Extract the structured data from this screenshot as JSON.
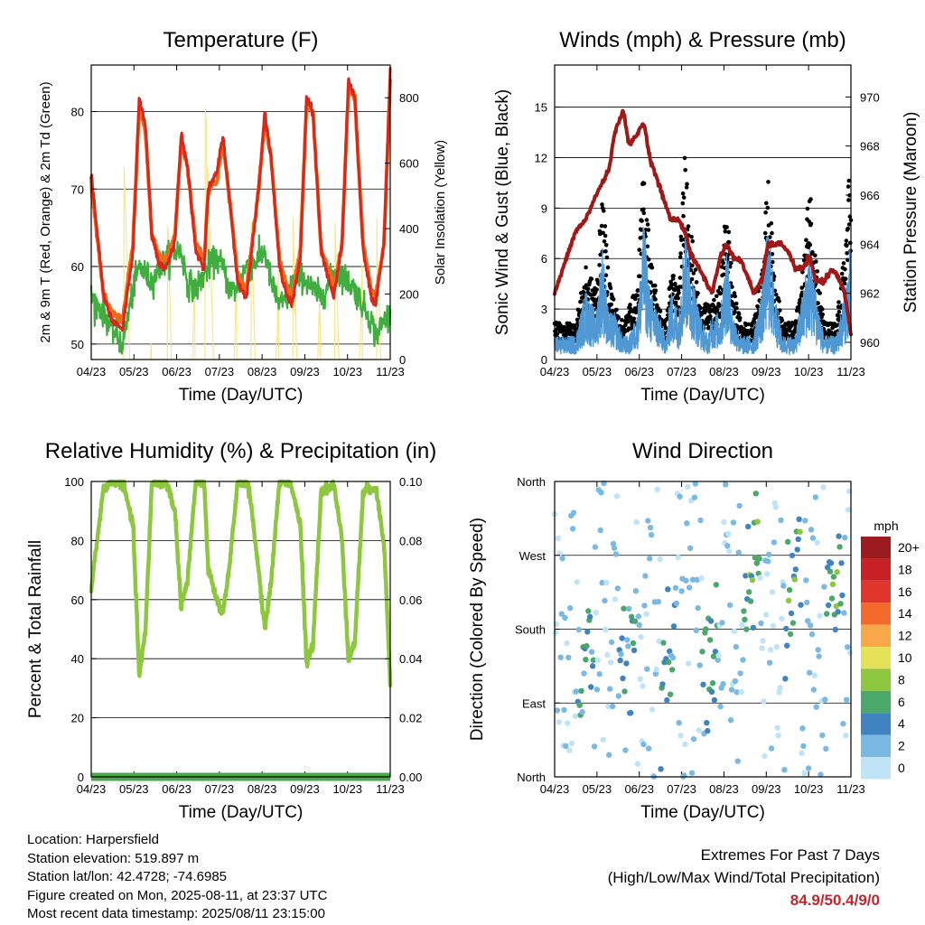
{
  "colors": {
    "temp2m": "#d7281c",
    "temp9m": "#f06a1c",
    "dewpoint": "#3fae3f",
    "solar": "#f7e58a",
    "gust": "#000000",
    "wind": "#4f98d3",
    "pressure": "#a11818",
    "rh": "#8dc63f",
    "precip": "#4aa84a"
  },
  "chart_data": [
    {
      "type": "line",
      "title": "Temperature (F)",
      "xlabel": "Time (Day/UTC)",
      "ylabel": "2m & 9m T (Red, Orange) & 2m Td (Green)",
      "y2label": "Solar Insolation (Yellow)",
      "x_ticks": [
        "04/23",
        "05/23",
        "06/23",
        "07/23",
        "08/23",
        "09/23",
        "10/23",
        "11/23"
      ],
      "ylim": [
        48,
        86
      ],
      "y_ticks": [
        50,
        60,
        70,
        80
      ],
      "y2lim": [
        0,
        900
      ],
      "y2_ticks": [
        0,
        200,
        400,
        600,
        800
      ],
      "grid": true,
      "x_days": [
        0,
        0.3,
        0.5,
        0.75,
        1.0,
        1.15,
        1.3,
        1.45,
        1.65,
        1.8,
        2.0,
        2.15,
        2.3,
        2.5,
        2.7,
        2.8,
        3.0,
        3.15,
        3.3,
        3.5,
        3.7,
        3.8,
        4.0,
        4.15,
        4.3,
        4.5,
        4.7,
        4.8,
        5.0,
        5.15,
        5.3,
        5.5,
        5.7,
        5.8,
        6.0,
        6.15,
        6.3,
        6.5,
        6.7,
        6.8,
        7.0,
        7.15
      ],
      "series": [
        {
          "name": "2m T",
          "values": [
            72,
            56,
            53,
            52,
            62,
            82,
            78,
            64,
            60,
            60,
            63,
            77,
            73,
            62,
            60,
            70,
            72,
            77,
            69,
            58,
            56,
            60,
            70,
            80,
            74,
            60,
            56,
            55,
            61,
            82,
            80,
            62,
            58,
            56,
            63,
            84,
            82,
            62,
            56,
            55,
            63,
            85
          ]
        },
        {
          "name": "9m T",
          "values": [
            71,
            56,
            54,
            53,
            63,
            81,
            77,
            64,
            61,
            61,
            64,
            76,
            73,
            63,
            61,
            70,
            71,
            76,
            69,
            59,
            57,
            61,
            70,
            79,
            74,
            61,
            57,
            56,
            62,
            81,
            80,
            62,
            59,
            57,
            63,
            83,
            82,
            63,
            57,
            56,
            63,
            84
          ]
        },
        {
          "name": "2m Td",
          "values": [
            56,
            54,
            52,
            50,
            57,
            60,
            59,
            58,
            60,
            61,
            62,
            62,
            58,
            57,
            59,
            60,
            61,
            60,
            57,
            57,
            60,
            60,
            61,
            62,
            58,
            55,
            56,
            58,
            59,
            58,
            57,
            56,
            58,
            59,
            59,
            58,
            57,
            55,
            53,
            51,
            53,
            54
          ]
        },
        {
          "name": "Solar Insolation",
          "values": [
            0,
            0,
            0,
            0,
            420,
            850,
            520,
            0,
            0,
            0,
            420,
            800,
            400,
            0,
            0,
            200,
            420,
            800,
            400,
            0,
            0,
            0,
            420,
            840,
            420,
            0,
            0,
            0,
            420,
            850,
            420,
            0,
            0,
            0,
            420,
            850,
            420,
            0,
            0,
            0,
            420,
            850
          ]
        }
      ]
    },
    {
      "type": "line",
      "title": "Winds (mph) & Pressure (mb)",
      "xlabel": "Time (Day/UTC)",
      "ylabel": "Sonic Wind & Gust (Blue, Black)",
      "y2label": "Station Pressure (Maroon)",
      "x_ticks": [
        "04/23",
        "05/23",
        "06/23",
        "07/23",
        "08/23",
        "09/23",
        "10/23",
        "11/23"
      ],
      "ylim": [
        0,
        17.5
      ],
      "y_ticks": [
        0,
        3,
        6,
        9,
        12,
        15
      ],
      "y2lim": [
        959.3,
        971.3
      ],
      "y2_ticks": [
        960,
        962,
        964,
        966,
        968,
        970
      ],
      "grid": true,
      "x_days": [
        0,
        0.3,
        0.5,
        0.75,
        1.0,
        1.15,
        1.3,
        1.45,
        1.65,
        1.8,
        2.0,
        2.15,
        2.3,
        2.5,
        2.7,
        2.8,
        3.0,
        3.15,
        3.3,
        3.5,
        3.7,
        3.8,
        4.0,
        4.15,
        4.3,
        4.5,
        4.7,
        4.8,
        5.0,
        5.15,
        5.3,
        5.5,
        5.7,
        5.8,
        6.0,
        6.15,
        6.3,
        6.5,
        6.7,
        6.8,
        7.0,
        7.15
      ],
      "series": [
        {
          "name": "Sonic Wind",
          "values": [
            1,
            1,
            1,
            3,
            2,
            5,
            2,
            2,
            1,
            1,
            2,
            6,
            3,
            2,
            1,
            3,
            2,
            6,
            4,
            2,
            1,
            2,
            2,
            5,
            2,
            1,
            1,
            1,
            3,
            6,
            3,
            1,
            1,
            1,
            3,
            5,
            3,
            1,
            1,
            1,
            3,
            5
          ]
        },
        {
          "name": "Gust",
          "values": [
            2,
            2,
            2,
            5,
            4,
            9,
            5,
            3,
            2,
            3,
            4,
            11,
            6,
            3,
            2,
            5,
            4,
            12,
            7,
            3,
            3,
            3,
            4,
            9,
            4,
            2,
            2,
            2,
            5,
            10,
            5,
            2,
            2,
            2,
            5,
            10,
            6,
            2,
            2,
            2,
            6,
            12
          ]
        },
        {
          "name": "Station Pressure",
          "values": [
            962,
            963.5,
            964.5,
            965,
            966,
            966.5,
            967,
            968.5,
            969.5,
            968,
            968.5,
            969,
            967.5,
            966.5,
            965.5,
            965,
            965,
            964.5,
            963.5,
            963,
            962.3,
            962,
            963.5,
            964,
            963.5,
            963.3,
            962.5,
            962,
            962.5,
            964,
            964,
            964,
            963.5,
            963,
            963,
            963.5,
            962.5,
            962.5,
            963,
            962.8,
            962,
            960.3
          ]
        }
      ]
    },
    {
      "type": "line",
      "title": "Relative Humidity (%) & Precipitation (in)",
      "xlabel": "Time (Day/UTC)",
      "ylabel": "Percent & Total Rainfall",
      "x_ticks": [
        "04/23",
        "05/23",
        "06/23",
        "07/23",
        "08/23",
        "09/23",
        "10/23",
        "11/23"
      ],
      "ylim": [
        0,
        100
      ],
      "y_ticks": [
        0,
        20,
        40,
        60,
        80,
        100
      ],
      "y2lim": [
        0,
        0.1
      ],
      "y2_ticks": [
        "0.00",
        "0.02",
        "0.04",
        "0.06",
        "0.08",
        "0.10"
      ],
      "grid": true,
      "x_days": [
        0,
        0.3,
        0.5,
        0.75,
        1.0,
        1.15,
        1.3,
        1.45,
        1.65,
        1.8,
        2.0,
        2.15,
        2.3,
        2.5,
        2.7,
        2.8,
        3.0,
        3.15,
        3.3,
        3.5,
        3.7,
        3.8,
        4.0,
        4.15,
        4.3,
        4.5,
        4.7,
        4.8,
        5.0,
        5.15,
        5.3,
        5.5,
        5.7,
        5.8,
        6.0,
        6.15,
        6.3,
        6.5,
        6.7,
        6.8,
        7.0,
        7.15
      ],
      "series": [
        {
          "name": "Relative Humidity",
          "values": [
            64,
            98,
            100,
            100,
            85,
            34,
            50,
            100,
            99,
            100,
            90,
            58,
            66,
            100,
            100,
            70,
            60,
            55,
            70,
            100,
            100,
            95,
            70,
            50,
            66,
            100,
            100,
            98,
            85,
            38,
            45,
            97,
            98,
            99,
            80,
            40,
            45,
            96,
            98,
            98,
            80,
            32
          ]
        },
        {
          "name": "Total Precipitation",
          "values": [
            0,
            0
          ]
        }
      ]
    },
    {
      "type": "scatter",
      "title": "Wind Direction",
      "xlabel": "Time (Day/UTC)",
      "ylabel": "Direction (Colored By Speed)",
      "x_ticks": [
        "04/23",
        "05/23",
        "06/23",
        "07/23",
        "08/23",
        "09/23",
        "10/23",
        "11/23"
      ],
      "y_ticks": [
        "North",
        "East",
        "South",
        "West",
        "North"
      ],
      "ylim": [
        0,
        360
      ],
      "grid": true,
      "points_per_day": 48,
      "legend": {
        "title": "mph",
        "labels": [
          "20+",
          "18",
          "16",
          "14",
          "12",
          "10",
          "8",
          "6",
          "4",
          "2",
          "0"
        ],
        "colors": [
          "#9b1b1e",
          "#c92026",
          "#e0352b",
          "#f26a2c",
          "#f8a848",
          "#e5e25a",
          "#8dc63f",
          "#4aa86a",
          "#3f83c1",
          "#7ab9e3",
          "#bfe3f7"
        ]
      }
    }
  ],
  "info": {
    "location": "Location: Harpersfield",
    "elevation": "Station elevation: 519.897 m",
    "latlon": "Station lat/lon: 42.4728; -74.6985",
    "created": "Figure created on Mon, 2025-08-11, at 23:37 UTC",
    "recent": "Most recent data timestamp: 2025/08/11 23:15:00"
  },
  "extremes": {
    "title": "Extremes For Past 7 Days",
    "subtitle": "(High/Low/Max Wind/Total Precipitation)",
    "values": "84.9/50.4/9/0"
  }
}
